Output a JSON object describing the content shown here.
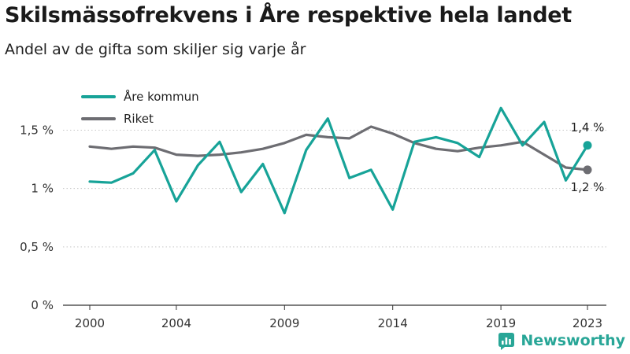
{
  "header": {
    "title": "Skilsmässofrekvens i Åre respektive hela landet",
    "subtitle": "Andel av de gifta som skiljer sig varje år"
  },
  "brand": {
    "name": "Newsworthy",
    "color": "#28a697"
  },
  "chart_data": {
    "type": "line",
    "x": [
      2000,
      2001,
      2002,
      2003,
      2004,
      2005,
      2006,
      2007,
      2008,
      2009,
      2010,
      2011,
      2012,
      2013,
      2014,
      2015,
      2016,
      2017,
      2018,
      2019,
      2020,
      2021,
      2022,
      2023
    ],
    "x_ticks": [
      2000,
      2004,
      2009,
      2014,
      2019,
      2023
    ],
    "xlim": [
      2000,
      2023
    ],
    "ylim": [
      0,
      1.8
    ],
    "y_ticks": [
      0,
      0.5,
      1,
      1.5
    ],
    "y_tick_labels": [
      "0 %",
      "0,5 %",
      "1 %",
      "1,5 %"
    ],
    "grid": "horizontal dotted",
    "legend_position": "top-left",
    "series": [
      {
        "name": "Åre kommun",
        "color": "#17a398",
        "values": [
          1.06,
          1.05,
          1.13,
          1.33,
          0.89,
          1.2,
          1.4,
          0.97,
          1.21,
          0.79,
          1.33,
          1.6,
          1.09,
          1.16,
          0.82,
          1.4,
          1.44,
          1.39,
          1.27,
          1.69,
          1.37,
          1.57,
          1.07,
          1.37
        ],
        "end_label": "1,4 %"
      },
      {
        "name": "Riket",
        "color": "#6d6d72",
        "values": [
          1.36,
          1.34,
          1.36,
          1.35,
          1.29,
          1.28,
          1.29,
          1.31,
          1.34,
          1.39,
          1.46,
          1.44,
          1.43,
          1.53,
          1.47,
          1.39,
          1.34,
          1.32,
          1.35,
          1.37,
          1.4,
          1.29,
          1.18,
          1.16
        ],
        "end_label": "1,2 %"
      }
    ]
  }
}
